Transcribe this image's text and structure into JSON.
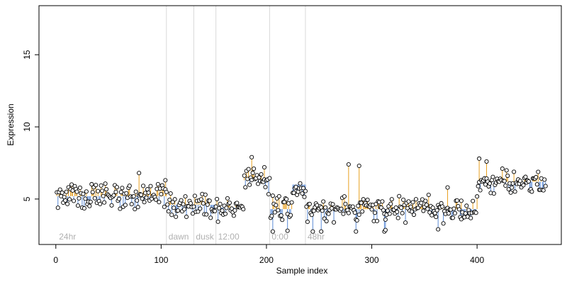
{
  "chart_data": {
    "type": "scatter",
    "title": "",
    "xlabel": "Sample index",
    "ylabel": "Expression",
    "xlim": [
      -16,
      480
    ],
    "ylim": [
      1.85,
      18.4
    ],
    "x_ticks": [
      0,
      100,
      200,
      300,
      400
    ],
    "y_ticks": [
      5,
      10,
      15
    ],
    "grid": false,
    "legend": "none",
    "colors": {
      "point_fill": "#ffffff",
      "point_stroke": "#000000",
      "stem_above": "#e8a020",
      "stem_below": "#5b8bd6",
      "reference_line": "#d9d9d9",
      "annotation_text": "#b0b0b0"
    },
    "reference_lines": [
      {
        "x": 105,
        "label": "dawn"
      },
      {
        "x": 131,
        "label": "dusk"
      },
      {
        "x": 152,
        "label": "12:00"
      },
      {
        "x": 203,
        "label": "0:00"
      },
      {
        "x": 237,
        "label": "48hr"
      }
    ],
    "corner_label": "24hr",
    "segments": [
      {
        "x_start": 1,
        "x_end": 105,
        "baseline": 5.2
      },
      {
        "x_start": 106,
        "x_end": 131,
        "baseline": 4.6
      },
      {
        "x_start": 132,
        "x_end": 152,
        "baseline": 4.6
      },
      {
        "x_start": 153,
        "x_end": 178,
        "baseline": 4.4
      },
      {
        "x_start": 179,
        "x_end": 203,
        "baseline": 6.3
      },
      {
        "x_start": 204,
        "x_end": 224,
        "baseline": 4.3
      },
      {
        "x_start": 225,
        "x_end": 237,
        "baseline": 6.0
      },
      {
        "x_start": 238,
        "x_end": 400,
        "baseline": 4.3
      },
      {
        "x_start": 401,
        "x_end": 465,
        "baseline": 6.2
      }
    ],
    "highlights": [
      {
        "x": 79,
        "y": 6.8
      },
      {
        "x": 104,
        "y": 6.3
      },
      {
        "x": 186,
        "y": 7.9
      },
      {
        "x": 198,
        "y": 7.2
      },
      {
        "x": 278,
        "y": 7.4
      },
      {
        "x": 288,
        "y": 7.3
      },
      {
        "x": 372,
        "y": 5.8
      },
      {
        "x": 402,
        "y": 7.8
      },
      {
        "x": 409,
        "y": 7.6
      },
      {
        "x": 206,
        "y": 2.75
      },
      {
        "x": 220,
        "y": 2.8
      },
      {
        "x": 244,
        "y": 2.75
      },
      {
        "x": 252,
        "y": 2.75
      },
      {
        "x": 285,
        "y": 2.75
      },
      {
        "x": 312,
        "y": 2.75
      },
      {
        "x": 313,
        "y": 2.85
      },
      {
        "x": 363,
        "y": 2.9
      },
      {
        "x": 385,
        "y": 3.6
      }
    ]
  }
}
